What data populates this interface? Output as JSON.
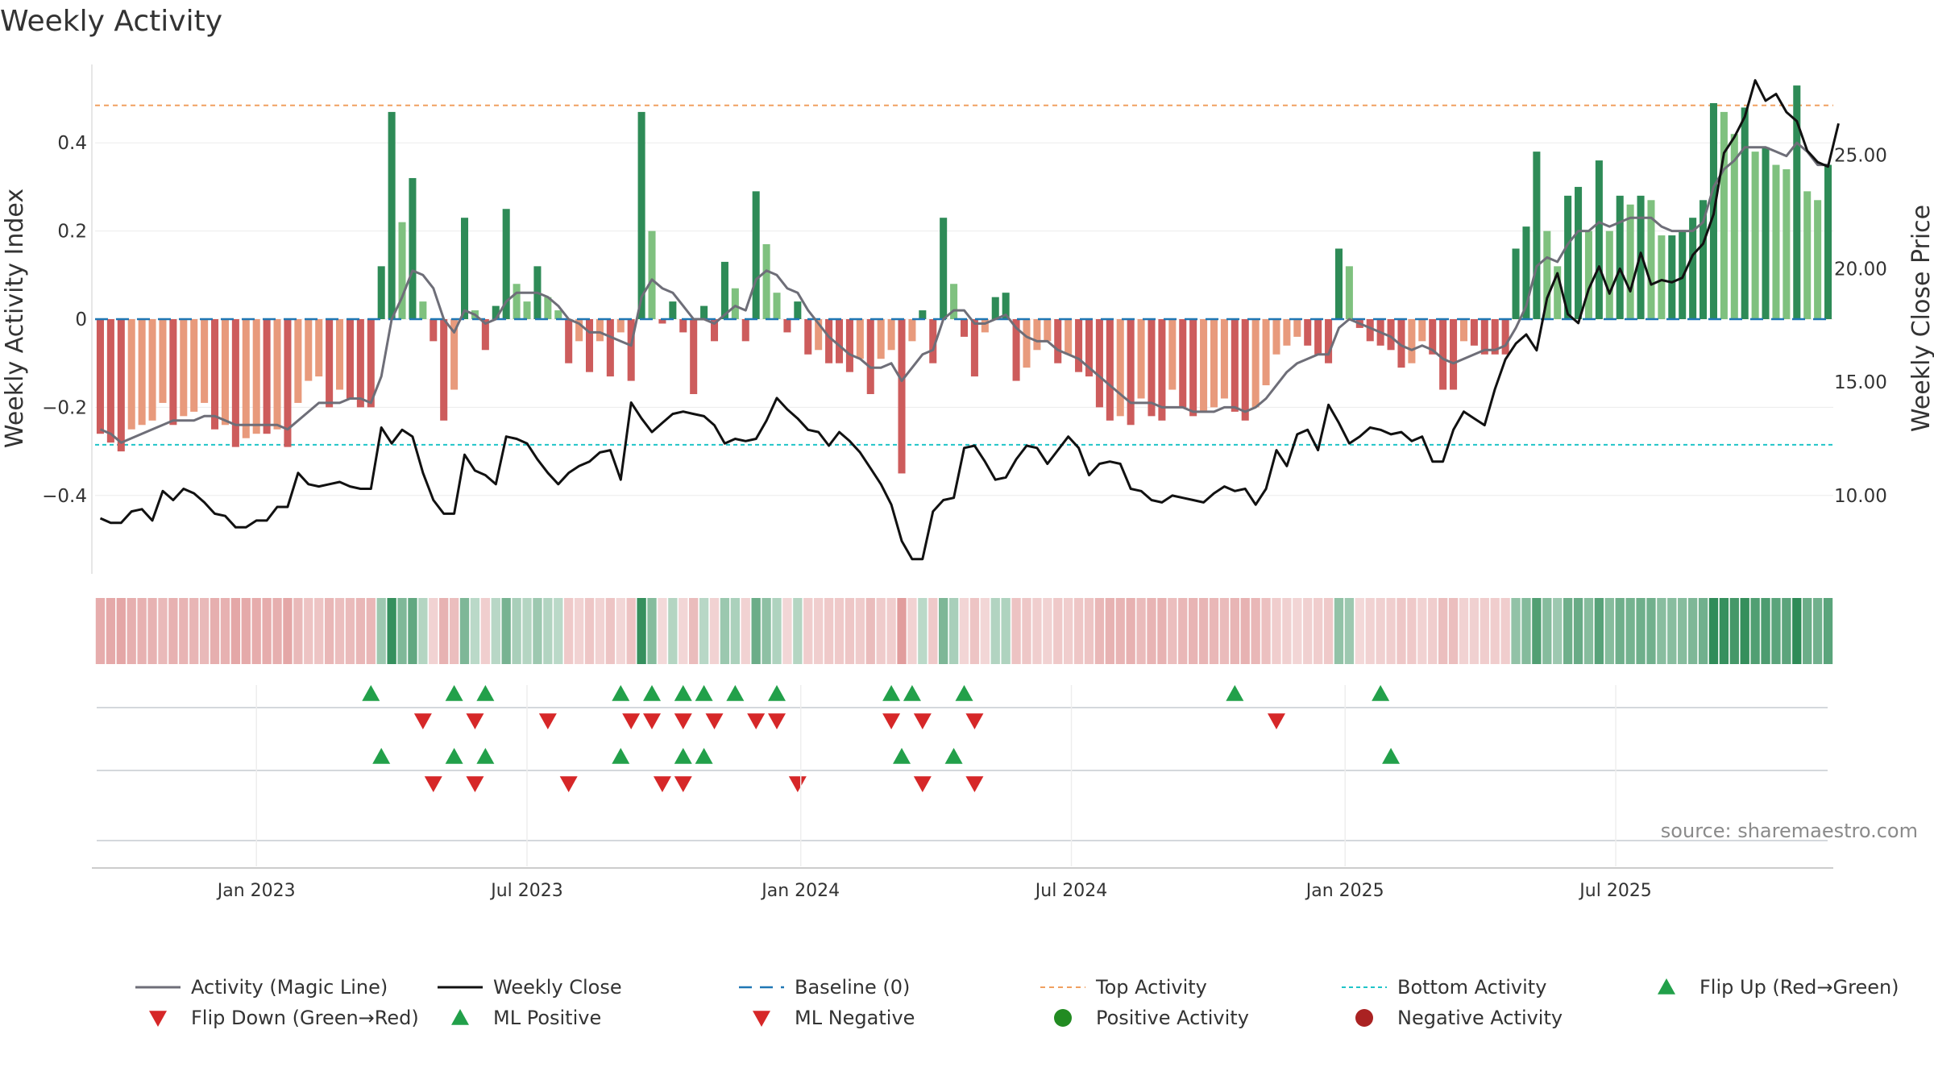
{
  "chart_data": {
    "type": "bar",
    "title": "Weekly Activity",
    "ylabel_left": "Weekly Activity Index",
    "ylabel_right": "Weekly Close Price",
    "ylim_left": [
      -0.58,
      0.58
    ],
    "ylim_right": [
      6.8,
      29.0
    ],
    "yticks_left": [
      0.4,
      0.2,
      0,
      -0.2,
      -0.4
    ],
    "yticks_left_labels": [
      "0.4",
      "0.2",
      "0",
      "−0.2",
      "−0.4"
    ],
    "yticks_right": [
      25,
      20,
      15,
      10
    ],
    "yticks_right_labels": [
      "25.00",
      "20.00",
      "15.00",
      "10.00"
    ],
    "x_dates": [
      "Jan 2023",
      "Jul 2023",
      "Jan 2024",
      "Jul 2024",
      "Jan 2025",
      "Jul 2025"
    ],
    "x_date_weeks": [
      15,
      41,
      67.3,
      93.3,
      119.6,
      145.6
    ],
    "top_activity": 0.485,
    "bottom_activity": -0.285,
    "baseline": 0,
    "activity_index": [
      -0.26,
      -0.28,
      -0.3,
      -0.25,
      -0.24,
      -0.23,
      -0.19,
      -0.24,
      -0.22,
      -0.21,
      -0.19,
      -0.25,
      -0.24,
      -0.29,
      -0.27,
      -0.26,
      -0.26,
      -0.25,
      -0.29,
      -0.19,
      -0.14,
      -0.13,
      -0.2,
      -0.16,
      -0.18,
      -0.2,
      -0.2,
      0.12,
      0.47,
      0.22,
      0.32,
      0.04,
      -0.05,
      -0.23,
      -0.16,
      0.23,
      0.02,
      -0.07,
      0.03,
      0.25,
      0.08,
      0.04,
      0.12,
      0.05,
      0.02,
      -0.1,
      -0.05,
      -0.12,
      -0.05,
      -0.13,
      -0.03,
      -0.14,
      0.47,
      0.2,
      -0.01,
      0.04,
      -0.03,
      -0.17,
      0.03,
      -0.05,
      0.13,
      0.07,
      -0.05,
      0.29,
      0.17,
      0.06,
      -0.03,
      0.04,
      -0.08,
      -0.07,
      -0.1,
      -0.1,
      -0.12,
      -0.09,
      -0.17,
      -0.09,
      -0.07,
      -0.35,
      -0.05,
      0.02,
      -0.1,
      0.23,
      0.08,
      -0.04,
      -0.13,
      -0.03,
      0.05,
      0.06,
      -0.14,
      -0.11,
      -0.07,
      -0.05,
      -0.1,
      -0.08,
      -0.12,
      -0.13,
      -0.2,
      -0.23,
      -0.22,
      -0.24,
      -0.18,
      -0.22,
      -0.23,
      -0.16,
      -0.2,
      -0.22,
      -0.21,
      -0.2,
      -0.18,
      -0.21,
      -0.23,
      -0.2,
      -0.15,
      -0.08,
      -0.06,
      -0.04,
      -0.06,
      -0.08,
      -0.1,
      0.16,
      0.12,
      -0.02,
      -0.05,
      -0.06,
      -0.07,
      -0.11,
      -0.1,
      -0.05,
      -0.08,
      -0.16,
      -0.16,
      -0.05,
      -0.06,
      -0.08,
      -0.08,
      -0.08,
      0.16,
      0.21,
      0.38,
      0.2,
      0.12,
      0.28,
      0.3,
      0.2,
      0.36,
      0.2,
      0.28,
      0.26,
      0.28,
      0.27,
      0.19,
      0.19,
      0.2,
      0.23,
      0.27,
      0.49,
      0.47,
      0.42,
      0.48,
      0.38,
      0.39,
      0.35,
      0.34,
      0.53,
      0.29,
      0.27,
      0.35
    ],
    "magic_line": [
      -0.25,
      -0.26,
      -0.28,
      -0.27,
      -0.26,
      -0.25,
      -0.24,
      -0.23,
      -0.23,
      -0.23,
      -0.22,
      -0.22,
      -0.23,
      -0.24,
      -0.24,
      -0.24,
      -0.24,
      -0.24,
      -0.25,
      -0.23,
      -0.21,
      -0.19,
      -0.19,
      -0.19,
      -0.18,
      -0.18,
      -0.19,
      -0.13,
      0.0,
      0.05,
      0.11,
      0.1,
      0.07,
      0.0,
      -0.03,
      0.02,
      0.01,
      -0.01,
      0.0,
      0.04,
      0.06,
      0.06,
      0.06,
      0.05,
      0.03,
      0.0,
      -0.01,
      -0.03,
      -0.03,
      -0.04,
      -0.05,
      -0.06,
      0.05,
      0.09,
      0.07,
      0.06,
      0.03,
      0.0,
      0.0,
      -0.01,
      0.01,
      0.03,
      0.02,
      0.09,
      0.11,
      0.1,
      0.07,
      0.06,
      0.02,
      -0.01,
      -0.04,
      -0.06,
      -0.08,
      -0.09,
      -0.11,
      -0.11,
      -0.1,
      -0.14,
      -0.11,
      -0.08,
      -0.07,
      0.0,
      0.02,
      0.02,
      -0.01,
      -0.01,
      0.0,
      0.01,
      -0.02,
      -0.04,
      -0.05,
      -0.05,
      -0.07,
      -0.08,
      -0.09,
      -0.11,
      -0.13,
      -0.15,
      -0.17,
      -0.19,
      -0.19,
      -0.19,
      -0.2,
      -0.2,
      -0.2,
      -0.21,
      -0.21,
      -0.21,
      -0.2,
      -0.2,
      -0.21,
      -0.2,
      -0.18,
      -0.15,
      -0.12,
      -0.1,
      -0.09,
      -0.08,
      -0.08,
      -0.02,
      0.0,
      -0.01,
      -0.02,
      -0.03,
      -0.04,
      -0.06,
      -0.07,
      -0.06,
      -0.07,
      -0.09,
      -0.1,
      -0.09,
      -0.08,
      -0.07,
      -0.07,
      -0.06,
      -0.02,
      0.03,
      0.12,
      0.14,
      0.13,
      0.17,
      0.2,
      0.2,
      0.22,
      0.21,
      0.22,
      0.23,
      0.23,
      0.23,
      0.21,
      0.2,
      0.2,
      0.2,
      0.22,
      0.3,
      0.34,
      0.36,
      0.39,
      0.39,
      0.39,
      0.38,
      0.37,
      0.4,
      0.38,
      0.35,
      0.35
    ],
    "weekly_close": [
      9.0,
      8.8,
      8.8,
      9.3,
      9.4,
      8.9,
      10.2,
      9.8,
      10.3,
      10.1,
      9.7,
      9.2,
      9.1,
      8.6,
      8.6,
      8.9,
      8.9,
      9.5,
      9.5,
      11.0,
      10.5,
      10.4,
      10.5,
      10.6,
      10.4,
      10.3,
      10.3,
      13.0,
      12.3,
      12.9,
      12.6,
      11.0,
      9.8,
      9.2,
      9.2,
      11.8,
      11.1,
      10.9,
      10.5,
      12.6,
      12.5,
      12.3,
      11.6,
      11.0,
      10.5,
      11.0,
      11.3,
      11.5,
      11.9,
      12.0,
      10.7,
      14.1,
      13.4,
      12.8,
      13.2,
      13.6,
      13.7,
      13.6,
      13.5,
      13.1,
      12.3,
      12.5,
      12.4,
      12.5,
      13.3,
      14.3,
      13.8,
      13.4,
      12.9,
      12.8,
      12.2,
      12.8,
      12.4,
      11.9,
      11.2,
      10.5,
      9.6,
      8.0,
      7.2,
      7.2,
      9.3,
      9.8,
      9.9,
      12.1,
      12.2,
      11.5,
      10.7,
      10.8,
      11.6,
      12.2,
      12.1,
      11.4,
      12.0,
      12.6,
      12.1,
      10.9,
      11.4,
      11.5,
      11.4,
      10.3,
      10.2,
      9.8,
      9.7,
      10.0,
      9.9,
      9.8,
      9.7,
      10.1,
      10.4,
      10.2,
      10.3,
      9.6,
      10.3,
      12.0,
      11.3,
      12.7,
      12.9,
      12.0,
      14.0,
      13.2,
      12.3,
      12.6,
      13.0,
      12.9,
      12.7,
      12.8,
      12.4,
      12.6,
      11.5,
      11.5,
      12.9,
      13.7,
      13.4,
      13.1,
      14.7,
      16.0,
      16.7,
      17.1,
      16.4,
      18.7,
      19.8,
      18.0,
      17.6,
      19.1,
      20.1,
      18.9,
      20.0,
      19.0,
      20.7,
      19.3,
      19.5,
      19.4,
      19.6,
      20.6,
      21.1,
      22.4,
      25.1,
      25.8,
      26.7,
      28.3,
      27.4,
      27.7,
      26.9,
      26.5,
      25.2,
      24.7,
      24.5,
      26.4
    ],
    "flip_up_weeks": [
      26,
      34,
      37,
      50,
      53,
      56,
      58,
      61,
      65,
      76,
      78,
      83,
      109,
      123
    ],
    "flip_down_weeks": [
      31,
      36,
      43,
      51,
      53,
      56,
      59,
      63,
      65,
      76,
      79,
      84,
      113
    ],
    "ml_positive_weeks": [
      27,
      34,
      37,
      50,
      56,
      58,
      77,
      82,
      124
    ],
    "ml_negative_weeks": [
      32,
      36,
      45,
      54,
      56,
      67,
      79,
      84
    ],
    "legend": [
      "Activity (Magic Line)",
      "Weekly Close",
      "Baseline (0)",
      "Top Activity",
      "Bottom Activity",
      "Flip Up (Red→Green)",
      "Flip Down (Green→Red)",
      "ML Positive",
      "ML Negative",
      "Positive Activity",
      "Negative Activity"
    ],
    "source": "source: sharemaestro.com"
  },
  "colors": {
    "pos_strong": "#2e8b57",
    "pos_light": "#7fc17f",
    "neg_strong": "#cd5c5c",
    "neg_light": "#e89a7c",
    "magic_line": "#6e6e78",
    "close": "#111111",
    "baseline": "#1f77b4",
    "top": "#f0a060",
    "bottom": "#20c4c8",
    "up_marker": "#22a04a",
    "down_marker": "#d62728",
    "pos_dot": "#228b22",
    "neg_dot": "#aa2222"
  }
}
